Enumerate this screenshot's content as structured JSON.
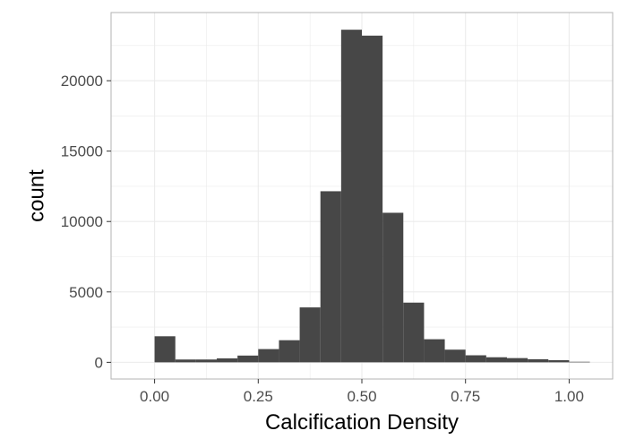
{
  "chart_data": {
    "type": "bar",
    "title": "",
    "xlabel": "Calcification Density",
    "ylabel": "count",
    "xlim": [
      -0.105,
      1.105
    ],
    "ylim": [
      -1185,
      24840
    ],
    "x_ticks": [
      0.0,
      0.25,
      0.5,
      0.75,
      1.0
    ],
    "x_tick_labels": [
      "0.00",
      "0.25",
      "0.50",
      "0.75",
      "1.00"
    ],
    "y_ticks": [
      0,
      5000,
      10000,
      15000,
      20000
    ],
    "y_tick_labels": [
      "0",
      "5000",
      "10000",
      "15000",
      "20000"
    ],
    "bin_width": 0.05,
    "bins": [
      {
        "x0": 0.0,
        "x1": 0.05,
        "count": 1850
      },
      {
        "x0": 0.05,
        "x1": 0.1,
        "count": 200
      },
      {
        "x0": 0.1,
        "x1": 0.15,
        "count": 200
      },
      {
        "x0": 0.15,
        "x1": 0.2,
        "count": 280
      },
      {
        "x0": 0.2,
        "x1": 0.25,
        "count": 480
      },
      {
        "x0": 0.25,
        "x1": 0.3,
        "count": 940
      },
      {
        "x0": 0.3,
        "x1": 0.35,
        "count": 1570
      },
      {
        "x0": 0.35,
        "x1": 0.4,
        "count": 3900
      },
      {
        "x0": 0.4,
        "x1": 0.45,
        "count": 12150
      },
      {
        "x0": 0.45,
        "x1": 0.5,
        "count": 23620
      },
      {
        "x0": 0.5,
        "x1": 0.55,
        "count": 23200
      },
      {
        "x0": 0.55,
        "x1": 0.6,
        "count": 10620
      },
      {
        "x0": 0.6,
        "x1": 0.65,
        "count": 4240
      },
      {
        "x0": 0.65,
        "x1": 0.7,
        "count": 1640
      },
      {
        "x0": 0.7,
        "x1": 0.75,
        "count": 900
      },
      {
        "x0": 0.75,
        "x1": 0.8,
        "count": 500
      },
      {
        "x0": 0.8,
        "x1": 0.85,
        "count": 360
      },
      {
        "x0": 0.85,
        "x1": 0.9,
        "count": 300
      },
      {
        "x0": 0.9,
        "x1": 0.95,
        "count": 220
      },
      {
        "x0": 0.95,
        "x1": 1.0,
        "count": 150
      },
      {
        "x0": 1.0,
        "x1": 1.05,
        "count": 40
      }
    ],
    "grid": true,
    "panel_border": true,
    "legend": "none",
    "colors": {
      "bar": "#474747",
      "grid": "#ebebeb",
      "border": "#b3b3b3",
      "tick": "#333333"
    }
  }
}
